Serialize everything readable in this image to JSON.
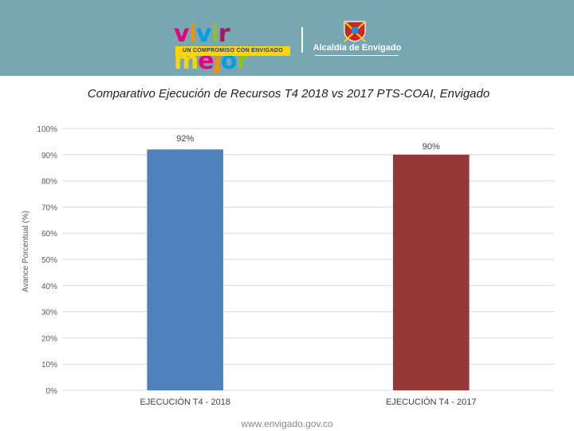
{
  "header": {
    "brand_main": "vivir mejor",
    "brand_tagline": "UN COMPROMISO CON ENVIGADO",
    "org_name": "Alcaldía de Envigado",
    "band_color": "#76a7b3"
  },
  "chart_data": {
    "type": "bar",
    "title": "Comparativo Ejecución de Recursos T4 2018 vs 2017 PTS-COAI, Envigado",
    "xlabel": "",
    "ylabel": "Avance Porcentual (%)",
    "categories": [
      "EJECUCIÓN T4 - 2018",
      "EJECUCIÓN T4 - 2017"
    ],
    "values": [
      92,
      90
    ],
    "data_labels": [
      "92%",
      "90%"
    ],
    "colors": [
      "#4f81bd",
      "#953735"
    ],
    "ylim": [
      0,
      100
    ],
    "yticks": [
      0,
      10,
      20,
      30,
      40,
      50,
      60,
      70,
      80,
      90,
      100
    ],
    "ytick_labels": [
      "0%",
      "10%",
      "20%",
      "30%",
      "40%",
      "50%",
      "60%",
      "70%",
      "80%",
      "90%",
      "100%"
    ],
    "grid": true,
    "legend": "none"
  },
  "footer": {
    "url": "www.envigado.gov.co"
  }
}
